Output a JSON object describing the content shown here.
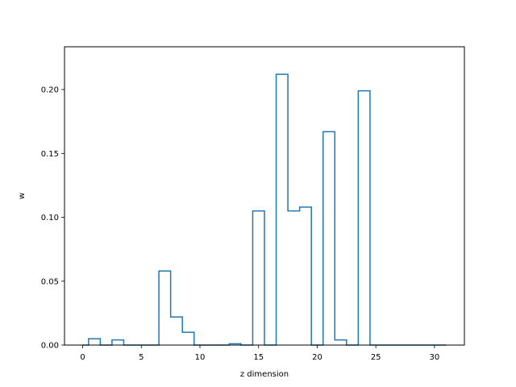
{
  "chart_data": {
    "type": "step",
    "title": "",
    "xlabel": "z dimension",
    "ylabel": "w",
    "xlim": [
      -1.55,
      32.55
    ],
    "ylim": [
      0,
      0.2335
    ],
    "xticks": [
      0,
      5,
      10,
      15,
      20,
      25,
      30
    ],
    "yticks": [
      0.0,
      0.05,
      0.1,
      0.15,
      0.2
    ],
    "ytick_labels": [
      "0.00",
      "0.05",
      "0.10",
      "0.15",
      "0.20"
    ],
    "grid": false,
    "line_color": "#1f77b4",
    "x": [
      0,
      1,
      2,
      3,
      4,
      5,
      6,
      7,
      8,
      9,
      10,
      11,
      12,
      13,
      14,
      15,
      16,
      17,
      18,
      19,
      20,
      21,
      22,
      23,
      24,
      25,
      26,
      27,
      28,
      29,
      30,
      31
    ],
    "values": [
      0.0,
      0.005,
      0.0,
      0.004,
      0.0,
      0.0,
      0.0,
      0.058,
      0.022,
      0.01,
      0.0,
      0.0,
      0.0,
      0.001,
      0.0,
      0.105,
      0.0,
      0.212,
      0.105,
      0.108,
      0.0,
      0.167,
      0.004,
      0.0,
      0.199,
      0.0,
      0.0,
      0.0,
      0.0,
      0.0,
      0.0,
      0.0
    ]
  }
}
